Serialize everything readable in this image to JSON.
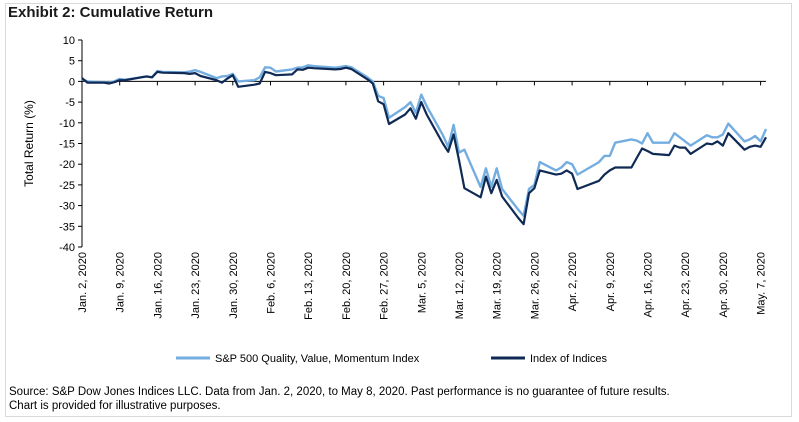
{
  "title": "Exhibit 2: Cumulative Return",
  "source_lines": [
    "Source: S&P Dow Jones Indices LLC. Data from Jan. 2, 2020, to May 8, 2020. Past performance is no guarantee of future results.",
    "Chart is provided for illustrative purposes."
  ],
  "chart_data": {
    "type": "line",
    "title": "Exhibit 2: Cumulative Return",
    "xlabel": "",
    "ylabel": "Total Return (%)",
    "ylim": [
      -40,
      10
    ],
    "yticks": [
      10,
      5,
      0,
      -5,
      -10,
      -15,
      -20,
      -25,
      -30,
      -35,
      -40
    ],
    "grid": false,
    "legend_position": "bottom",
    "x_tick_labels": [
      "Jan. 2, 2020",
      "Jan. 9, 2020",
      "Jan. 16, 2020",
      "Jan. 23, 2020",
      "Jan. 30, 2020",
      "Feb. 6, 2020",
      "Feb. 13, 2020",
      "Feb. 20, 2020",
      "Feb. 27, 2020",
      "Mar. 5, 2020",
      "Mar. 12, 2020",
      "Mar. 19, 2020",
      "Mar. 26, 2020",
      "Apr. 2, 2020",
      "Apr. 9, 2020",
      "Apr. 16, 2020",
      "Apr. 23, 2020",
      "Apr. 30, 2020",
      "May. 7, 2020"
    ],
    "x_tick_days": [
      0,
      7,
      14,
      21,
      28,
      35,
      42,
      49,
      56,
      63,
      70,
      77,
      84,
      91,
      98,
      105,
      112,
      119,
      126
    ],
    "x_day_max": 127,
    "x_day": [
      0,
      1,
      4,
      5,
      6,
      7,
      8,
      11,
      12,
      13,
      14,
      15,
      19,
      20,
      21,
      22,
      25,
      26,
      27,
      28,
      29,
      32,
      33,
      34,
      35,
      36,
      39,
      40,
      41,
      42,
      43,
      47,
      48,
      49,
      50,
      53,
      54,
      55,
      56,
      57,
      60,
      61,
      62,
      63,
      64,
      67,
      68,
      69,
      70,
      71,
      74,
      75,
      76,
      77,
      78,
      81,
      82,
      83,
      84,
      85,
      88,
      89,
      90,
      91,
      92,
      96,
      97,
      98,
      99,
      102,
      103,
      104,
      105,
      106,
      109,
      110,
      111,
      112,
      113,
      116,
      117,
      118,
      119,
      120,
      123,
      124,
      125,
      126,
      127
    ],
    "series": [
      {
        "name": "S&P 500 Quality, Value, Momentum Index",
        "color": "#74aee0",
        "values": [
          0.5,
          0,
          -0.2,
          -0.3,
          0,
          0.6,
          0.4,
          1.0,
          1.2,
          1.0,
          2.5,
          2.3,
          2.2,
          2.4,
          2.7,
          2.3,
          0.8,
          1.2,
          1.3,
          1.8,
          0.0,
          0.3,
          1.0,
          3.4,
          3.3,
          2.4,
          2.9,
          3.3,
          3.4,
          3.9,
          3.7,
          3.3,
          3.5,
          3.7,
          3.4,
          1.0,
          0.0,
          -3.5,
          -4.0,
          -8.8,
          -6.2,
          -5.0,
          -7.6,
          -3.2,
          -6.0,
          -13.0,
          -15.8,
          -10.5,
          -17.2,
          -16.5,
          -25.5,
          -21.0,
          -25.5,
          -21.0,
          -26.0,
          -31.0,
          -32.5,
          -26.0,
          -25.0,
          -19.5,
          -21.5,
          -20.8,
          -19.5,
          -20.0,
          -22.5,
          -19.5,
          -18.0,
          -18.0,
          -14.8,
          -14.0,
          -14.3,
          -15.0,
          -12.5,
          -14.8,
          -14.8,
          -12.5,
          -13.5,
          -14.5,
          -15.5,
          -13.0,
          -13.5,
          -13.5,
          -12.8,
          -10.2,
          -14.5,
          -14.0,
          -13.2,
          -14.5,
          -11.5
        ]
      },
      {
        "name": "Index of Indices",
        "color": "#0f2a55",
        "values": [
          0.8,
          -0.3,
          -0.3,
          -0.5,
          -0.2,
          0.3,
          0.3,
          1.0,
          1.2,
          1.0,
          2.3,
          2.1,
          2.0,
          1.8,
          2.0,
          1.3,
          0.3,
          -0.3,
          0.7,
          1.5,
          -1.3,
          -0.8,
          -0.5,
          2.3,
          2.0,
          1.5,
          1.7,
          2.9,
          2.8,
          3.3,
          3.2,
          2.9,
          3.0,
          3.3,
          3.0,
          0.5,
          -0.5,
          -4.8,
          -5.5,
          -10.3,
          -8.0,
          -6.5,
          -9.0,
          -5.0,
          -8.0,
          -15.0,
          -17.0,
          -12.8,
          -19.0,
          -25.8,
          -28.0,
          -23.0,
          -27.0,
          -23.8,
          -27.8,
          -33.0,
          -34.5,
          -27.0,
          -25.8,
          -21.5,
          -22.5,
          -22.3,
          -21.5,
          -22.3,
          -26.0,
          -24.0,
          -22.5,
          -21.5,
          -20.8,
          -20.8,
          -18.5,
          -16.2,
          -16.8,
          -17.5,
          -17.8,
          -15.5,
          -16.0,
          -16.0,
          -17.5,
          -15.0,
          -15.2,
          -14.5,
          -15.5,
          -12.5,
          -16.5,
          -15.8,
          -15.5,
          -15.8,
          -13.5
        ]
      }
    ]
  }
}
